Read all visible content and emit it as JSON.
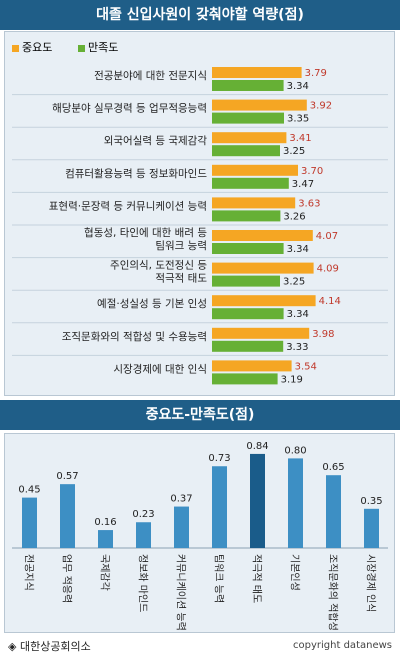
{
  "title": "대졸 신입사원이 갖춰야할 역량(점)",
  "colors": {
    "importance": "#f5a623",
    "satisfaction": "#66b035",
    "bar2": "#3d8fc4",
    "bar2_highlight": "#1a5c8a",
    "value_red": "#c0392b"
  },
  "chart_data": [
    {
      "type": "bar",
      "orientation": "horizontal",
      "categories": [
        "전공분야에 대한 전문지식",
        "해당분야 실무경력 등 업무적응능력",
        "외국어실력 등 국제감각",
        "컴퓨터활용능력 등 정보화마인드",
        "표현력·문장력 등 커뮤니케이션 능력",
        "협동성, 타인에 대한 배려 등\n팀워크 능력",
        "주인의식, 도전정신 등\n적극적 태도",
        "예절·성실성 등 기본 인성",
        "조직문화와의 적합성 및 수용능력",
        "시장경제에 대한 인식"
      ],
      "series": [
        {
          "name": "중요도",
          "values": [
            3.79,
            3.92,
            3.41,
            3.7,
            3.63,
            4.07,
            4.09,
            4.14,
            3.98,
            3.54
          ]
        },
        {
          "name": "만족도",
          "values": [
            3.34,
            3.35,
            3.25,
            3.47,
            3.26,
            3.34,
            3.25,
            3.34,
            3.33,
            3.19
          ]
        }
      ],
      "legend": "top-left"
    },
    {
      "type": "bar",
      "title": "중요도-만족도(점)",
      "categories": [
        "전공지식",
        "업무 적응력",
        "국제감각",
        "정보화 마인드",
        "커뮤니케이션 능력",
        "팀워크 능력",
        "적극적 태도",
        "기본인성",
        "조직문화의 적합성",
        "시장경제 인식"
      ],
      "values": [
        0.45,
        0.57,
        0.16,
        0.23,
        0.37,
        0.73,
        0.84,
        0.8,
        0.65,
        0.35
      ],
      "highlight_index": 6
    }
  ],
  "footer": {
    "source": "◈ 대한상공회의소",
    "copyright": "copyright datanews"
  }
}
